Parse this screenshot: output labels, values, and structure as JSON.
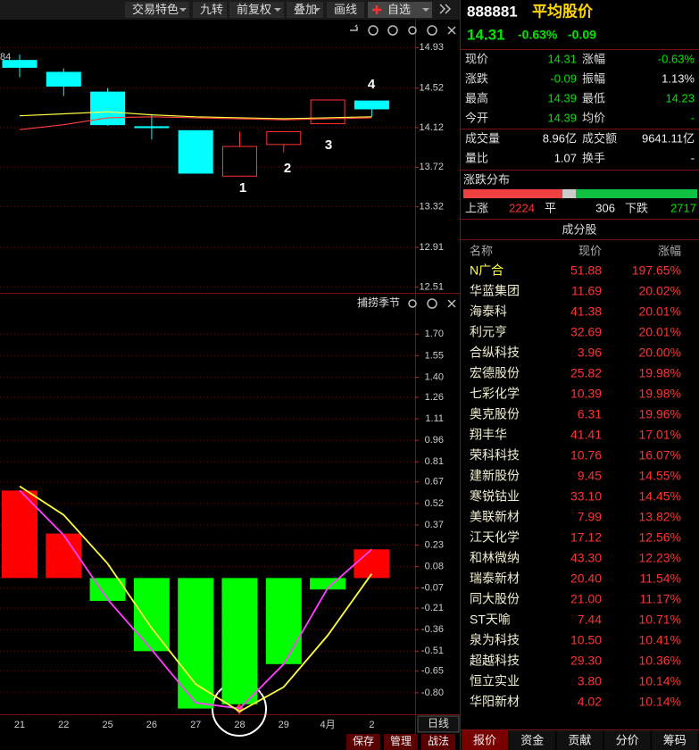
{
  "toolbar": [
    "交易特色",
    "九转",
    "前复权",
    "叠加",
    "画线",
    "自选"
  ],
  "chart_data": [
    {
      "type": "candlestick",
      "label": "84",
      "open": [
        14.8,
        14.68,
        14.48,
        14.13,
        14.09,
        13.63,
        13.95,
        14.16,
        14.39
      ],
      "high": [
        14.86,
        14.72,
        14.52,
        14.26,
        14.09,
        14.08,
        14.08,
        14.4,
        14.39
      ],
      "low": [
        14.63,
        14.44,
        14.14,
        14.0,
        13.66,
        13.63,
        13.87,
        14.16,
        14.23
      ],
      "close": [
        14.73,
        14.54,
        14.15,
        14.12,
        13.66,
        13.93,
        14.08,
        14.4,
        14.31
      ],
      "up_color": "#ff3232",
      "down_color": "#00ffff",
      "series": [
        {
          "color": "#ffff40",
          "values": [
            14.24,
            14.26,
            14.28,
            14.25,
            14.23,
            14.22,
            14.21,
            14.22,
            14.23
          ]
        },
        {
          "color": "#ff4040",
          "values": [
            14.1,
            14.15,
            14.22,
            14.23,
            14.22,
            14.21,
            14.2,
            14.21,
            14.22
          ]
        }
      ],
      "annotations": [
        "1",
        "2",
        "3",
        "4"
      ],
      "ylim": [
        12.45,
        15.14
      ],
      "yticks": [
        14.93,
        14.52,
        14.12,
        13.72,
        13.32,
        12.91,
        12.51
      ],
      "grid": true
    },
    {
      "type": "bar",
      "title": "捕捞季节",
      "categories": [
        "21",
        "22",
        "25",
        "26",
        "27",
        "28",
        "29",
        "4月",
        "2"
      ],
      "values": [
        0.61,
        0.31,
        -0.16,
        -0.51,
        -0.91,
        -0.88,
        -0.6,
        -0.08,
        0.2
      ],
      "up_color": "#ff0000",
      "down_color": "#00ff00",
      "series": [
        {
          "color": "#ff40ff",
          "values": [
            0.61,
            0.3,
            -0.15,
            -0.5,
            -0.87,
            -0.91,
            -0.6,
            -0.07,
            0.2
          ]
        },
        {
          "color": "#ffff40",
          "values": [
            0.64,
            0.44,
            0.1,
            -0.35,
            -0.74,
            -0.93,
            -0.76,
            -0.4,
            0.03
          ]
        }
      ],
      "period": "日线",
      "ylim": [
        -0.95,
        1.82
      ],
      "yticks": [
        {
          "value": 1.7,
          "label": "1.70"
        },
        1.55,
        {
          "value": 1.4,
          "label": "1.40"
        },
        1.26,
        1.11,
        0.96,
        0.81,
        0.67,
        0.52,
        0.37,
        0.23,
        0.08,
        -0.07,
        -0.21,
        -0.36,
        -0.51,
        -0.65,
        {
          "value": -0.8,
          "label": "-0.80"
        }
      ],
      "grid": true
    }
  ],
  "buttons": [
    "保存",
    "管理",
    "战法"
  ],
  "quote": {
    "code": "888881",
    "name": "平均股价",
    "price": "14.31",
    "change_pct": "-0.63%",
    "change": "-0.09",
    "rows": [
      [
        "现价",
        "14.31",
        "涨幅",
        "-0.63%"
      ],
      [
        "涨跌",
        "-0.09",
        "振幅",
        "1.13%"
      ],
      [
        "最高",
        "14.39",
        "最低",
        "14.23"
      ],
      [
        "今开",
        "14.39",
        "均价",
        "-"
      ],
      [
        "成交量",
        "8.96亿",
        "成交额",
        "9641.11亿"
      ],
      [
        "量比",
        "1.07",
        "换手",
        "-"
      ]
    ]
  },
  "breadth": {
    "title": "涨跌分布",
    "up_label": "上涨",
    "up": 2224,
    "flat_label": "平",
    "flat": 306,
    "down_label": "下跌",
    "down": 2717
  },
  "constituents": {
    "title": "成分股",
    "header": [
      "名称",
      "现价",
      "涨幅"
    ],
    "rows": [
      [
        "N广合",
        "51.88",
        "197.65%"
      ],
      [
        "华蓝集团",
        "11.69",
        "20.02%"
      ],
      [
        "海泰科",
        "41.38",
        "20.01%"
      ],
      [
        "利元亨",
        "32.69",
        "20.01%"
      ],
      [
        "合纵科技",
        "3.96",
        "20.00%"
      ],
      [
        "宏德股份",
        "25.82",
        "19.98%"
      ],
      [
        "七彩化学",
        "10.39",
        "19.98%"
      ],
      [
        "奥克股份",
        "6.31",
        "19.96%"
      ],
      [
        "翔丰华",
        "41.41",
        "17.01%"
      ],
      [
        "荣科科技",
        "10.76",
        "16.07%"
      ],
      [
        "建新股份",
        "9.45",
        "14.55%"
      ],
      [
        "寒锐钴业",
        "33.10",
        "14.45%"
      ],
      [
        "美联新材",
        "7.99",
        "13.82%"
      ],
      [
        "江天化学",
        "17.12",
        "12.56%"
      ],
      [
        "和林微纳",
        "43.30",
        "12.23%"
      ],
      [
        "瑞泰新材",
        "20.40",
        "11.54%"
      ],
      [
        "同大股份",
        "21.00",
        "11.17%"
      ],
      [
        "ST天喻",
        "7.44",
        "10.71%"
      ],
      [
        "泉为科技",
        "10.50",
        "10.41%"
      ],
      [
        "超越科技",
        "29.30",
        "10.36%"
      ],
      [
        "恒立实业",
        "3.80",
        "10.14%"
      ],
      [
        "华阳新材",
        "4.02",
        "10.14%"
      ]
    ]
  },
  "tabs": [
    "报价",
    "资金",
    "贡献",
    "分价",
    "筹码"
  ]
}
